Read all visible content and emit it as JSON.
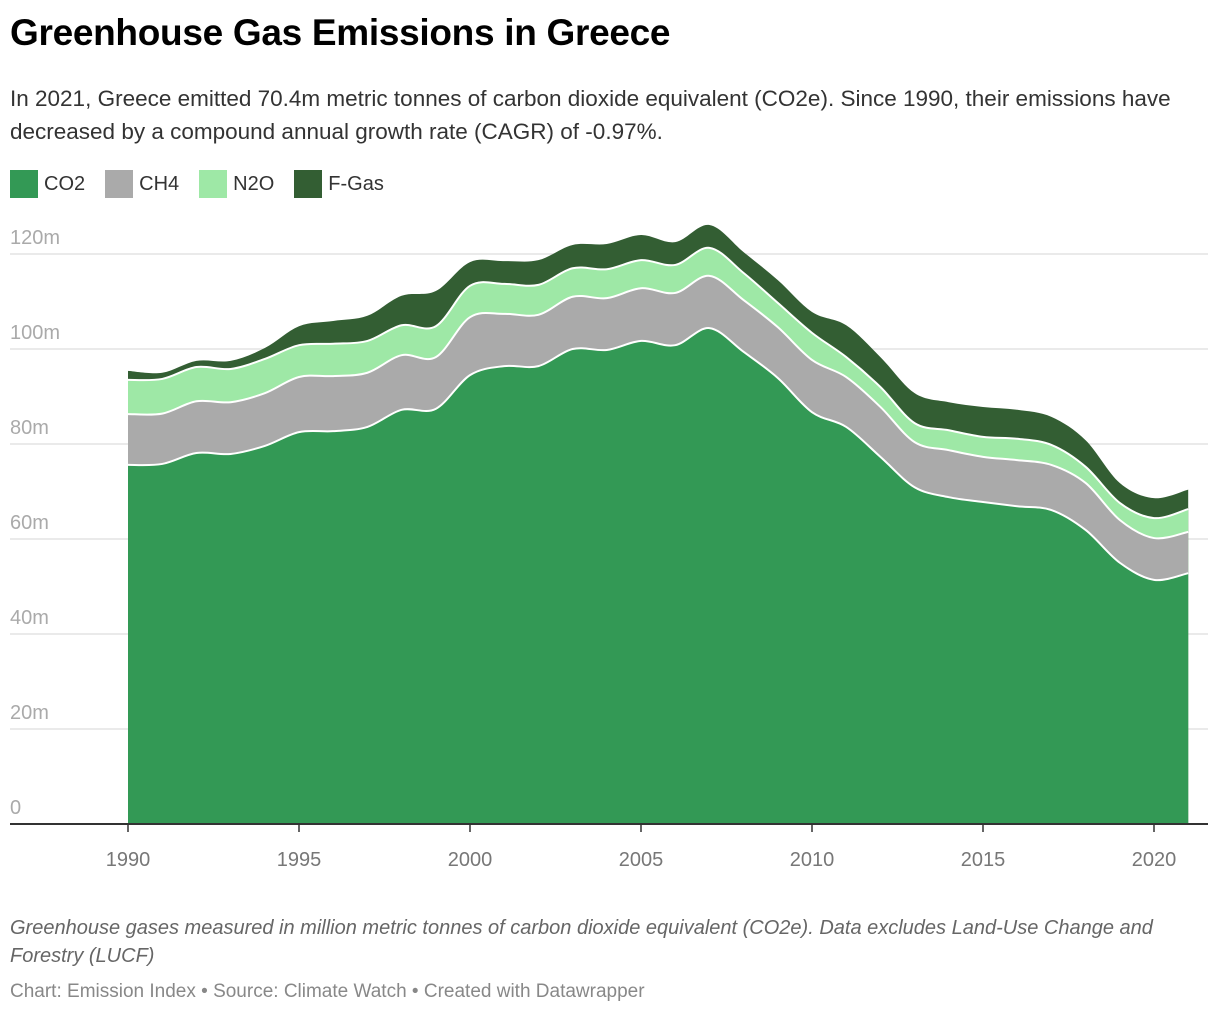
{
  "title": "Greenhouse Gas Emissions in Greece",
  "subtitle": "In 2021, Greece emitted 70.4m metric tonnes of carbon dioxide equivalent (CO2e). Since 1990, their emissions have decreased by a compound annual growth rate (CAGR) of -0.97%.",
  "notes": "Greenhouse gases measured in million metric tonnes of carbon dioxide equivalent (CO2e). Data excludes Land-Use Change and Forestry (LUCF)",
  "source": "Chart: Emission Index • Source: Climate Watch • Created with Datawrapper",
  "chart_data": {
    "type": "area",
    "stacked": true,
    "title": "Greenhouse Gas Emissions in Greece",
    "xlabel": "",
    "ylabel": "",
    "ylim": [
      0,
      125
    ],
    "xlim": [
      1986.5,
      2022
    ],
    "grid": true,
    "legend_position": "top-left",
    "y_ticks": [
      0,
      20,
      40,
      60,
      80,
      100,
      120
    ],
    "y_tick_labels": [
      "0",
      "20m",
      "40m",
      "60m",
      "80m",
      "100m",
      "120m"
    ],
    "x_ticks": [
      1990,
      1995,
      2000,
      2005,
      2010,
      2015,
      2020
    ],
    "x_tick_labels": [
      "1990",
      "1995",
      "2000",
      "2005",
      "2010",
      "2015",
      "2020"
    ],
    "x": [
      1990,
      1991,
      1992,
      1993,
      1994,
      1995,
      1996,
      1997,
      1998,
      1999,
      2000,
      2001,
      2002,
      2003,
      2004,
      2005,
      2006,
      2007,
      2008,
      2009,
      2010,
      2011,
      2012,
      2013,
      2014,
      2015,
      2016,
      2017,
      2018,
      2019,
      2020,
      2021
    ],
    "series": [
      {
        "name": "CO2",
        "color": "#339955",
        "values": [
          75.6,
          75.8,
          78.1,
          77.9,
          79.6,
          82.5,
          82.7,
          83.6,
          87.2,
          87.4,
          94.5,
          96.4,
          96.4,
          100.0,
          99.8,
          101.7,
          100.8,
          104.4,
          99.4,
          93.9,
          86.7,
          83.6,
          77.3,
          70.9,
          68.8,
          67.8,
          66.9,
          66.1,
          61.9,
          55.0,
          51.4,
          52.8
        ]
      },
      {
        "name": "CH4",
        "color": "#aaaaaa",
        "values": [
          10.7,
          10.6,
          10.9,
          10.9,
          11.1,
          11.6,
          11.6,
          11.4,
          11.5,
          10.9,
          12.2,
          11.0,
          10.8,
          11.0,
          10.9,
          11.1,
          11.0,
          11.0,
          10.9,
          10.7,
          11.0,
          10.5,
          10.5,
          9.5,
          9.9,
          9.5,
          9.7,
          9.5,
          9.9,
          9.0,
          8.8,
          8.7
        ]
      },
      {
        "name": "N2O",
        "color": "#9ee8a6",
        "values": [
          7.2,
          7.3,
          7.2,
          7.0,
          7.2,
          6.7,
          6.8,
          6.7,
          6.3,
          6.5,
          6.6,
          6.3,
          6.3,
          6.0,
          6.1,
          5.9,
          5.9,
          5.9,
          5.7,
          5.1,
          5.7,
          4.2,
          4.2,
          4.0,
          4.2,
          4.2,
          4.5,
          4.2,
          3.4,
          3.6,
          4.2,
          4.8
        ]
      },
      {
        "name": "F-Gas",
        "color": "#335e33",
        "values": [
          1.9,
          1.3,
          1.3,
          1.7,
          2.3,
          4.0,
          4.8,
          5.3,
          6.2,
          7.4,
          5.0,
          4.8,
          5.2,
          4.9,
          5.3,
          5.3,
          4.8,
          4.8,
          4.4,
          4.8,
          4.4,
          6.7,
          6.3,
          6.3,
          5.9,
          6.3,
          6.1,
          5.9,
          5.6,
          4.2,
          4.2,
          4.1
        ]
      }
    ]
  }
}
